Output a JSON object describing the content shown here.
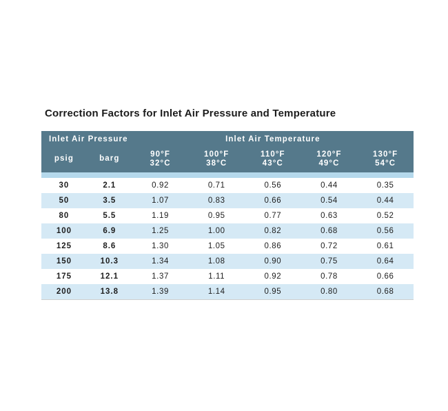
{
  "title": "Correction Factors for Inlet Air Pressure and Temperature",
  "table": {
    "group_headers": [
      {
        "label": "Inlet Air Pressure",
        "colspan": 2
      },
      {
        "label": "Inlet Air Temperature",
        "colspan": 5
      }
    ],
    "columns": [
      {
        "key": "psig",
        "line1": "psig"
      },
      {
        "key": "barg",
        "line1": "barg"
      },
      {
        "key": "90f",
        "line1": "90°F",
        "line2": "32°C"
      },
      {
        "key": "100f",
        "line1": "100°F",
        "line2": "38°C"
      },
      {
        "key": "110f",
        "line1": "110°F",
        "line2": "43°C"
      },
      {
        "key": "120f",
        "line1": "120°F",
        "line2": "49°C"
      },
      {
        "key": "130f",
        "line1": "130°F",
        "line2": "54°C"
      }
    ],
    "rows": [
      [
        "30",
        "2.1",
        "0.92",
        "0.71",
        "0.56",
        "0.44",
        "0.35"
      ],
      [
        "50",
        "3.5",
        "1.07",
        "0.83",
        "0.66",
        "0.54",
        "0.44"
      ],
      [
        "80",
        "5.5",
        "1.19",
        "0.95",
        "0.77",
        "0.63",
        "0.52"
      ],
      [
        "100",
        "6.9",
        "1.25",
        "1.00",
        "0.82",
        "0.68",
        "0.56"
      ],
      [
        "125",
        "8.6",
        "1.30",
        "1.05",
        "0.86",
        "0.72",
        "0.61"
      ],
      [
        "150",
        "10.3",
        "1.34",
        "1.08",
        "0.90",
        "0.75",
        "0.64"
      ],
      [
        "175",
        "12.1",
        "1.37",
        "1.11",
        "0.92",
        "0.78",
        "0.66"
      ],
      [
        "200",
        "13.8",
        "1.39",
        "1.14",
        "0.95",
        "0.80",
        "0.68"
      ]
    ],
    "colors": {
      "header_bg": "#55798b",
      "header_text": "#ffffff",
      "spacer_bg": "#b5d9ec",
      "stripe_bg": "#d5e9f5",
      "row_bg": "#ffffff",
      "cell_text": "#1d1d1d"
    }
  },
  "chart_data": {
    "type": "table",
    "title": "Correction Factors for Inlet Air Pressure and Temperature",
    "columns": [
      "psig",
      "barg",
      "90°F / 32°C",
      "100°F / 38°C",
      "110°F / 43°C",
      "120°F / 49°C",
      "130°F / 54°C"
    ],
    "rows": [
      [
        30,
        2.1,
        0.92,
        0.71,
        0.56,
        0.44,
        0.35
      ],
      [
        50,
        3.5,
        1.07,
        0.83,
        0.66,
        0.54,
        0.44
      ],
      [
        80,
        5.5,
        1.19,
        0.95,
        0.77,
        0.63,
        0.52
      ],
      [
        100,
        6.9,
        1.25,
        1.0,
        0.82,
        0.68,
        0.56
      ],
      [
        125,
        8.6,
        1.3,
        1.05,
        0.86,
        0.72,
        0.61
      ],
      [
        150,
        10.3,
        1.34,
        1.08,
        0.9,
        0.75,
        0.64
      ],
      [
        175,
        12.1,
        1.37,
        1.11,
        0.92,
        0.78,
        0.66
      ],
      [
        200,
        13.8,
        1.39,
        1.14,
        0.95,
        0.8,
        0.68
      ]
    ]
  }
}
